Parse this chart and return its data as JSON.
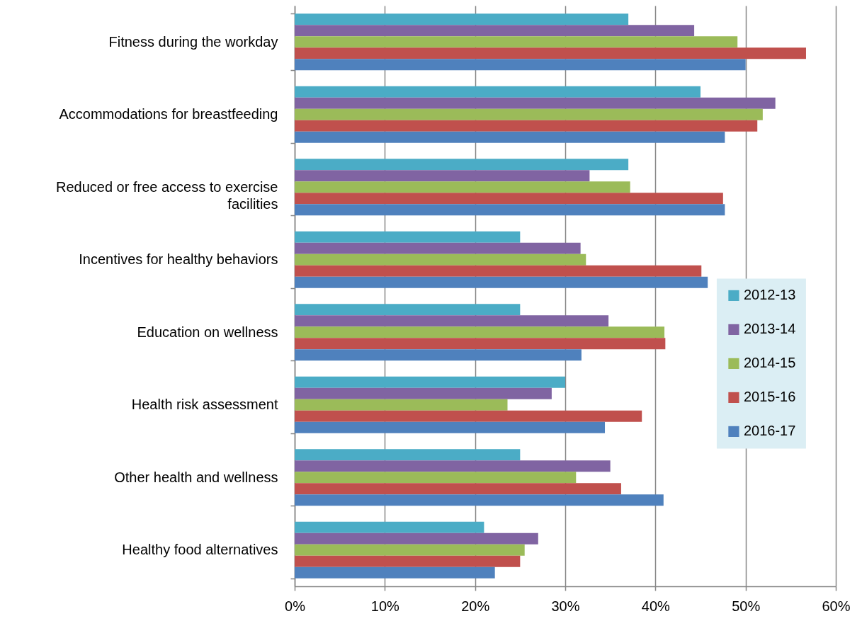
{
  "chart_data": {
    "type": "bar",
    "orientation": "horizontal",
    "categories": [
      "Fitness during the workday",
      "Accommodations for breastfeeding",
      "Reduced or free access to exercise facilities",
      "Incentives for healthy behaviors",
      "Education on wellness",
      "Health risk assessment",
      "Other health and wellness",
      "Healthy food alternatives"
    ],
    "series": [
      {
        "name": "2012-13",
        "color": "#4bacc6",
        "values": [
          37,
          45,
          37,
          25,
          25,
          30,
          25,
          21
        ]
      },
      {
        "name": "2013-14",
        "color": "#8064a2",
        "values": [
          44.3,
          53.3,
          32.7,
          31.7,
          34.8,
          28.5,
          35,
          27
        ]
      },
      {
        "name": "2014-15",
        "color": "#9bbb59",
        "values": [
          49.1,
          51.9,
          37.2,
          32.3,
          41,
          23.6,
          31.2,
          25.5
        ]
      },
      {
        "name": "2015-16",
        "color": "#c0504d",
        "values": [
          56.7,
          51.3,
          47.5,
          45.1,
          41.1,
          38.5,
          36.2,
          25
        ]
      },
      {
        "name": "2016-17",
        "color": "#4f81bd",
        "values": [
          50,
          47.7,
          47.7,
          45.8,
          31.8,
          34.4,
          40.9,
          22.2
        ]
      }
    ],
    "xlim": [
      0,
      60
    ],
    "xticks": [
      {
        "value": 0,
        "label": "0%"
      },
      {
        "value": 10,
        "label": "10%"
      },
      {
        "value": 20,
        "label": "20%"
      },
      {
        "value": 30,
        "label": "30%"
      },
      {
        "value": 40,
        "label": "40%"
      },
      {
        "value": 50,
        "label": "50%"
      },
      {
        "value": 60,
        "label": "60%"
      }
    ],
    "grid": "x",
    "legend": "right"
  }
}
